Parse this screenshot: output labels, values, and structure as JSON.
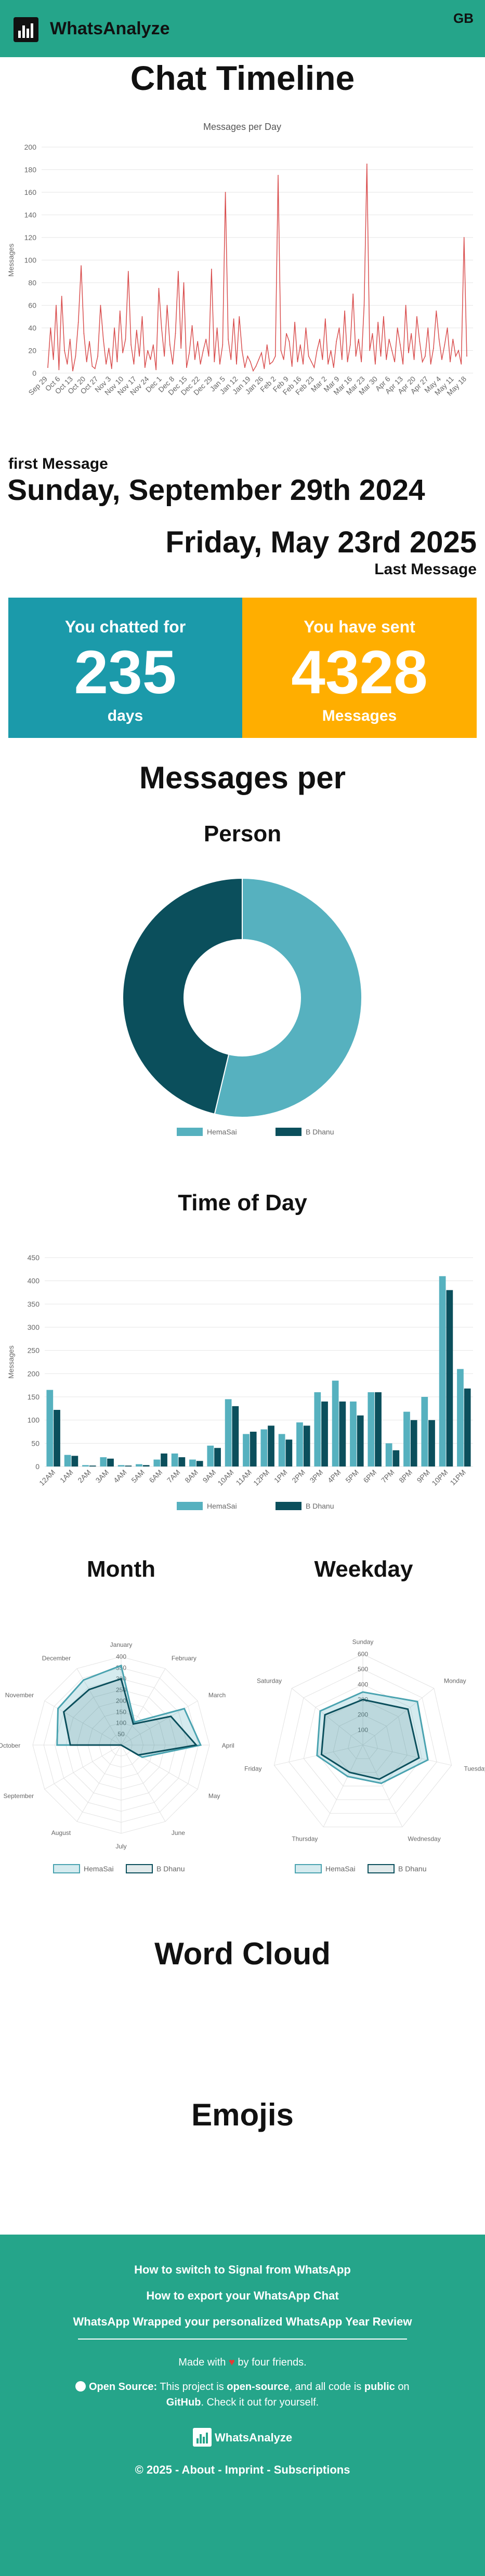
{
  "app": {
    "brand": "WhatsAnalyze",
    "lang": "GB"
  },
  "page_title": "Chat Timeline",
  "first_message": {
    "label": "first Message",
    "date": "Sunday, September 29th 2024"
  },
  "last_message": {
    "label": "Last Message",
    "date": "Friday, May 23rd 2025"
  },
  "stats": {
    "chatted": {
      "title": "You chatted for",
      "value": "235",
      "unit": "days",
      "color": "#1b9aaa"
    },
    "sent": {
      "title": "You have sent",
      "value": "4328",
      "unit": "Messages",
      "color": "#ffae00"
    }
  },
  "sections": {
    "messages_per": "Messages per",
    "person": "Person",
    "time_of_day": "Time of Day",
    "month": "Month",
    "weekday": "Weekday",
    "word_cloud": "Word Cloud",
    "emojis": "Emojis"
  },
  "colors": {
    "header": "#25a58a",
    "series1": "#56b1bf",
    "series2": "#0b4f5c",
    "line": "#d94e4e"
  },
  "chart_data": [
    {
      "type": "line",
      "title": "Messages per Day",
      "ylabel": "Messages",
      "ylim": [
        0,
        200
      ],
      "yticks": [
        0,
        20,
        40,
        60,
        80,
        100,
        120,
        140,
        160,
        180,
        200
      ],
      "xtick_labels": [
        "Sep 29",
        "Oct 6",
        "Oct 13",
        "Oct 20",
        "Oct 27",
        "Nov 3",
        "Nov 10",
        "Nov 17",
        "Nov 24",
        "Dec 1",
        "Dec 8",
        "Dec 15",
        "Dec 22",
        "Dec 29",
        "Jan 5",
        "Jan 12",
        "Jan 19",
        "Jan 26",
        "Feb 2",
        "Feb 9",
        "Feb 16",
        "Feb 23",
        "Mar 2",
        "Mar 9",
        "Mar 16",
        "Mar 23",
        "Mar 30",
        "Apr 6",
        "Apr 13",
        "Apr 20",
        "Apr 27",
        "May 4",
        "May 11",
        "May 18"
      ],
      "values": [
        5,
        40,
        12,
        60,
        3,
        68,
        20,
        8,
        30,
        2,
        15,
        45,
        95,
        35,
        10,
        28,
        6,
        4,
        15,
        60,
        30,
        8,
        22,
        4,
        40,
        10,
        55,
        18,
        30,
        90,
        25,
        8,
        38,
        15,
        50,
        5,
        20,
        12,
        25,
        3,
        75,
        40,
        15,
        60,
        25,
        8,
        35,
        90,
        22,
        80,
        5,
        18,
        42,
        12,
        28,
        8,
        20,
        30,
        15,
        92,
        10,
        40,
        8,
        25,
        160,
        30,
        12,
        48,
        8,
        50,
        20,
        5,
        15,
        10,
        2,
        6,
        12,
        18,
        4,
        25,
        8,
        10,
        15,
        175,
        20,
        12,
        35,
        28,
        6,
        45,
        10,
        25,
        8,
        40,
        15,
        10,
        5,
        20,
        30,
        12,
        48,
        8,
        20,
        5,
        28,
        40,
        12,
        55,
        10,
        25,
        70,
        15,
        30,
        10,
        60,
        185,
        20,
        35,
        8,
        45,
        15,
        50,
        12,
        30,
        20,
        10,
        40,
        25,
        8,
        60,
        18,
        35,
        12,
        50,
        28,
        10,
        15,
        40,
        8,
        22,
        55,
        30,
        12,
        25,
        40,
        10,
        30,
        15,
        20,
        8,
        120,
        15
      ]
    },
    {
      "type": "pie",
      "series": [
        {
          "name": "HemaSai",
          "value": 2325
        },
        {
          "name": "B Dhanu",
          "value": 2003
        }
      ]
    },
    {
      "type": "bar",
      "ylabel": "Messages",
      "ylim": [
        0,
        450
      ],
      "yticks": [
        0,
        50,
        100,
        150,
        200,
        250,
        300,
        350,
        400,
        450
      ],
      "categories": [
        "12AM",
        "1AM",
        "2AM",
        "3AM",
        "4AM",
        "5AM",
        "6AM",
        "7AM",
        "8AM",
        "9AM",
        "10AM",
        "11AM",
        "12PM",
        "1PM",
        "2PM",
        "3PM",
        "4PM",
        "5PM",
        "6PM",
        "7PM",
        "8PM",
        "9PM",
        "10PM",
        "11PM"
      ],
      "series": [
        {
          "name": "HemaSai",
          "values": [
            165,
            25,
            3,
            20,
            3,
            5,
            15,
            28,
            15,
            45,
            145,
            70,
            80,
            70,
            95,
            160,
            185,
            140,
            160,
            50,
            118,
            150,
            410,
            210
          ]
        },
        {
          "name": "B Dhanu",
          "values": [
            122,
            23,
            2,
            17,
            2,
            3,
            28,
            20,
            12,
            40,
            130,
            75,
            88,
            58,
            88,
            140,
            140,
            110,
            160,
            35,
            100,
            100,
            380,
            168
          ]
        }
      ]
    },
    {
      "type": "radar",
      "rmax": 400,
      "ticks": [
        50,
        100,
        150,
        200,
        250,
        300,
        350,
        400
      ],
      "categories": [
        "January",
        "February",
        "March",
        "April",
        "May",
        "June",
        "July",
        "August",
        "September",
        "October",
        "November",
        "December"
      ],
      "series": [
        {
          "name": "HemaSai",
          "values": [
            360,
            120,
            330,
            360,
            110,
            0,
            0,
            0,
            0,
            290,
            330,
            340
          ]
        },
        {
          "name": "B Dhanu",
          "values": [
            300,
            110,
            260,
            340,
            90,
            0,
            0,
            0,
            0,
            230,
            300,
            290
          ]
        }
      ]
    },
    {
      "type": "radar",
      "rmax": 600,
      "ticks": [
        100,
        200,
        300,
        400,
        500,
        600
      ],
      "categories": [
        "Sunday",
        "Monday",
        "Tuesday",
        "Wednesday",
        "Thursday",
        "Friday",
        "Saturday"
      ],
      "series": [
        {
          "name": "HemaSai",
          "values": [
            350,
            460,
            440,
            280,
            230,
            310,
            360
          ]
        },
        {
          "name": "B Dhanu",
          "values": [
            300,
            380,
            380,
            250,
            200,
            280,
            320
          ]
        }
      ]
    }
  ],
  "footer": {
    "links": [
      "How to switch to Signal from WhatsApp",
      "How to export your WhatsApp Chat",
      "WhatsApp Wrapped your personalized WhatsApp Year Review"
    ],
    "made_with_pre": "Made with",
    "made_with_post": "by four friends.",
    "oss_label": "Open Source:",
    "oss_text_1": "This project is",
    "oss_bold_1": "open-source",
    "oss_text_2": ", and all code is",
    "oss_bold_2": "public",
    "oss_text_3": "on",
    "oss_bold_3": "GitHub",
    "oss_text_4": ". Check it out for yourself.",
    "brand": "WhatsAnalyze",
    "copyright": "© 2025 - About - Imprint - Subscriptions"
  }
}
